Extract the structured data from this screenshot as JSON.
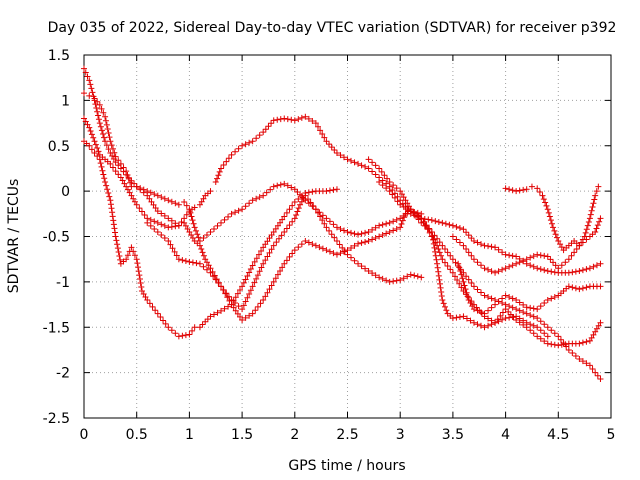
{
  "chart_data": {
    "type": "scatter",
    "title": "Day 035 of 2022, Sidereal Day-to-day VTEC variation (SDTVAR) for receiver p392",
    "xlabel": "GPS time / hours",
    "ylabel": "SDTVAR / TECUs",
    "xlim": [
      0,
      5
    ],
    "ylim": [
      -2.5,
      1.5
    ],
    "xticks": [
      "0",
      "0.5",
      "1",
      "1.5",
      "2",
      "2.5",
      "3",
      "3.5",
      "4",
      "4.5",
      "5"
    ],
    "yticks": [
      "1.5",
      "1",
      "0.5",
      "0",
      "-0.5",
      "-1",
      "-1.5",
      "-2",
      "-2.5"
    ],
    "grid": true,
    "marker": "+",
    "color": "#e00000",
    "series": [
      {
        "name": "trace-a",
        "points": [
          [
            0.0,
            1.35
          ],
          [
            0.05,
            1.22
          ],
          [
            0.1,
            1.0
          ],
          [
            0.15,
            0.75
          ],
          [
            0.2,
            0.55
          ],
          [
            0.25,
            0.42
          ],
          [
            0.3,
            0.32
          ],
          [
            0.4,
            0.18
          ],
          [
            0.5,
            0.05
          ],
          [
            0.6,
            -0.05
          ],
          [
            0.7,
            -0.22
          ],
          [
            0.8,
            -0.3
          ],
          [
            0.9,
            -0.38
          ],
          [
            1.0,
            -0.22
          ],
          [
            1.05,
            -0.18
          ],
          [
            1.1,
            -0.15
          ],
          [
            1.15,
            -0.05
          ],
          [
            1.2,
            0.0
          ]
        ]
      },
      {
        "name": "trace-b",
        "points": [
          [
            0.0,
            1.08
          ],
          [
            0.05,
            1.05
          ],
          [
            0.1,
            1.02
          ],
          [
            0.15,
            0.95
          ],
          [
            0.2,
            0.82
          ],
          [
            0.25,
            0.55
          ],
          [
            0.3,
            0.38
          ],
          [
            0.4,
            0.22
          ],
          [
            0.45,
            0.05
          ],
          [
            0.5,
            0.05
          ],
          [
            0.6,
            0.0
          ],
          [
            0.7,
            -0.05
          ],
          [
            0.8,
            -0.1
          ],
          [
            0.9,
            -0.15
          ],
          [
            0.95,
            -0.12
          ],
          [
            1.0,
            -0.2
          ],
          [
            1.05,
            -0.4
          ],
          [
            1.1,
            -0.55
          ],
          [
            1.2,
            -0.45
          ],
          [
            1.3,
            -0.35
          ],
          [
            1.4,
            -0.25
          ],
          [
            1.5,
            -0.2
          ],
          [
            1.6,
            -0.1
          ],
          [
            1.7,
            -0.05
          ],
          [
            1.8,
            0.05
          ],
          [
            1.9,
            0.08
          ],
          [
            2.0,
            0.02
          ],
          [
            2.1,
            -0.1
          ],
          [
            2.2,
            -0.2
          ],
          [
            2.3,
            -0.3
          ],
          [
            2.4,
            -0.4
          ],
          [
            2.5,
            -0.45
          ],
          [
            2.6,
            -0.48
          ],
          [
            2.7,
            -0.45
          ],
          [
            2.8,
            -0.38
          ],
          [
            2.9,
            -0.35
          ],
          [
            3.0,
            -0.3
          ],
          [
            3.1,
            -0.22
          ],
          [
            3.2,
            -0.25
          ]
        ]
      },
      {
        "name": "trace-c",
        "points": [
          [
            0.0,
            0.8
          ],
          [
            0.05,
            0.7
          ],
          [
            0.1,
            0.55
          ],
          [
            0.15,
            0.4
          ],
          [
            0.2,
            0.35
          ],
          [
            0.25,
            0.3
          ],
          [
            0.3,
            0.22
          ],
          [
            0.35,
            0.15
          ],
          [
            0.4,
            0.05
          ],
          [
            0.45,
            -0.05
          ],
          [
            0.5,
            -0.15
          ],
          [
            0.6,
            -0.3
          ],
          [
            0.7,
            -0.35
          ],
          [
            0.8,
            -0.4
          ],
          [
            0.9,
            -0.38
          ],
          [
            0.95,
            -0.35
          ],
          [
            1.0,
            -0.45
          ],
          [
            1.05,
            -0.55
          ],
          [
            1.1,
            -0.6
          ],
          [
            1.15,
            -0.75
          ],
          [
            1.2,
            -0.85
          ],
          [
            1.3,
            -1.05
          ],
          [
            1.4,
            -1.25
          ],
          [
            1.5,
            -1.42
          ],
          [
            1.6,
            -1.35
          ],
          [
            1.7,
            -1.2
          ],
          [
            1.8,
            -1.0
          ],
          [
            1.9,
            -0.8
          ],
          [
            2.0,
            -0.65
          ],
          [
            2.1,
            -0.55
          ],
          [
            2.2,
            -0.6
          ],
          [
            2.3,
            -0.65
          ],
          [
            2.4,
            -0.7
          ],
          [
            2.5,
            -0.65
          ],
          [
            2.6,
            -0.58
          ],
          [
            2.7,
            -0.55
          ],
          [
            2.8,
            -0.5
          ],
          [
            2.9,
            -0.45
          ],
          [
            3.0,
            -0.4
          ],
          [
            3.05,
            -0.25
          ],
          [
            3.1,
            -0.2
          ],
          [
            3.2,
            -0.3
          ],
          [
            3.3,
            -0.45
          ],
          [
            3.4,
            -0.6
          ],
          [
            3.5,
            -0.75
          ],
          [
            3.6,
            -0.9
          ],
          [
            3.7,
            -1.05
          ],
          [
            3.8,
            -1.15
          ],
          [
            3.9,
            -1.2
          ],
          [
            4.0,
            -1.25
          ],
          [
            4.1,
            -1.3
          ],
          [
            4.2,
            -1.35
          ],
          [
            4.3,
            -1.4
          ],
          [
            4.4,
            -1.5
          ],
          [
            4.5,
            -1.6
          ],
          [
            4.6,
            -1.75
          ],
          [
            4.7,
            -1.85
          ],
          [
            4.8,
            -1.92
          ],
          [
            4.85,
            -2.0
          ],
          [
            4.9,
            -2.07
          ]
        ]
      },
      {
        "name": "trace-d",
        "points": [
          [
            0.0,
            0.55
          ],
          [
            0.05,
            0.5
          ],
          [
            0.1,
            0.42
          ],
          [
            0.15,
            0.35
          ],
          [
            0.2,
            0.1
          ],
          [
            0.25,
            -0.1
          ],
          [
            0.3,
            -0.5
          ],
          [
            0.35,
            -0.8
          ],
          [
            0.4,
            -0.75
          ],
          [
            0.45,
            -0.62
          ],
          [
            0.5,
            -0.75
          ],
          [
            0.55,
            -1.1
          ],
          [
            0.6,
            -1.2
          ],
          [
            0.7,
            -1.35
          ],
          [
            0.8,
            -1.5
          ],
          [
            0.9,
            -1.6
          ],
          [
            1.0,
            -1.58
          ],
          [
            1.05,
            -1.5
          ],
          [
            1.1,
            -1.5
          ],
          [
            1.2,
            -1.38
          ],
          [
            1.3,
            -1.32
          ],
          [
            1.4,
            -1.25
          ],
          [
            1.5,
            -1.05
          ],
          [
            1.6,
            -0.82
          ],
          [
            1.7,
            -0.62
          ],
          [
            1.8,
            -0.45
          ],
          [
            1.9,
            -0.28
          ],
          [
            2.0,
            -0.12
          ],
          [
            2.1,
            -0.02
          ],
          [
            2.2,
            0.0
          ],
          [
            2.3,
            0.0
          ],
          [
            2.4,
            0.02
          ]
        ]
      },
      {
        "name": "trace-e",
        "points": [
          [
            1.25,
            0.1
          ],
          [
            1.3,
            0.25
          ],
          [
            1.4,
            0.4
          ],
          [
            1.5,
            0.5
          ],
          [
            1.6,
            0.55
          ],
          [
            1.7,
            0.65
          ],
          [
            1.8,
            0.78
          ],
          [
            1.9,
            0.8
          ],
          [
            2.0,
            0.78
          ],
          [
            2.1,
            0.82
          ],
          [
            2.2,
            0.75
          ],
          [
            2.3,
            0.55
          ],
          [
            2.4,
            0.42
          ],
          [
            2.5,
            0.35
          ],
          [
            2.6,
            0.3
          ],
          [
            2.7,
            0.25
          ],
          [
            2.8,
            0.15
          ],
          [
            2.9,
            0.05
          ],
          [
            3.0,
            -0.1
          ],
          [
            3.1,
            -0.25
          ],
          [
            3.2,
            -0.3
          ],
          [
            3.3,
            -0.32
          ],
          [
            3.4,
            -0.35
          ],
          [
            3.5,
            -0.38
          ],
          [
            3.6,
            -0.42
          ],
          [
            3.7,
            -0.55
          ],
          [
            3.8,
            -0.6
          ],
          [
            3.9,
            -0.62
          ],
          [
            4.0,
            -0.7
          ],
          [
            4.1,
            -0.72
          ],
          [
            4.2,
            -0.8
          ],
          [
            4.3,
            -0.85
          ],
          [
            4.4,
            -0.88
          ],
          [
            4.5,
            -0.9
          ],
          [
            4.6,
            -0.9
          ],
          [
            4.7,
            -0.88
          ],
          [
            4.8,
            -0.85
          ],
          [
            4.9,
            -0.8
          ]
        ]
      },
      {
        "name": "trace-f",
        "points": [
          [
            0.6,
            -0.35
          ],
          [
            0.7,
            -0.45
          ],
          [
            0.8,
            -0.55
          ],
          [
            0.9,
            -0.75
          ],
          [
            1.0,
            -0.78
          ],
          [
            1.1,
            -0.8
          ],
          [
            1.2,
            -0.9
          ],
          [
            1.3,
            -1.05
          ],
          [
            1.4,
            -1.2
          ],
          [
            1.5,
            -1.3
          ],
          [
            1.6,
            -1.05
          ],
          [
            1.7,
            -0.8
          ],
          [
            1.8,
            -0.6
          ],
          [
            1.9,
            -0.45
          ],
          [
            2.0,
            -0.3
          ],
          [
            2.05,
            -0.15
          ],
          [
            2.1,
            -0.05
          ],
          [
            2.2,
            -0.2
          ],
          [
            2.3,
            -0.4
          ],
          [
            2.4,
            -0.55
          ],
          [
            2.5,
            -0.7
          ],
          [
            2.6,
            -0.8
          ],
          [
            2.7,
            -0.88
          ],
          [
            2.8,
            -0.95
          ],
          [
            2.9,
            -1.0
          ],
          [
            3.0,
            -0.98
          ],
          [
            3.1,
            -0.92
          ],
          [
            3.2,
            -0.95
          ]
        ]
      },
      {
        "name": "trace-g",
        "points": [
          [
            2.7,
            0.35
          ],
          [
            2.8,
            0.25
          ],
          [
            2.9,
            0.1
          ],
          [
            3.0,
            0.0
          ],
          [
            3.05,
            -0.1
          ],
          [
            3.1,
            -0.2
          ],
          [
            3.2,
            -0.35
          ],
          [
            3.3,
            -0.45
          ],
          [
            3.35,
            -0.8
          ],
          [
            3.4,
            -1.2
          ],
          [
            3.45,
            -1.35
          ],
          [
            3.5,
            -1.4
          ],
          [
            3.6,
            -1.38
          ],
          [
            3.7,
            -1.45
          ],
          [
            3.8,
            -1.5
          ],
          [
            3.9,
            -1.45
          ],
          [
            4.0,
            -1.3
          ],
          [
            4.1,
            -1.42
          ],
          [
            4.2,
            -1.5
          ],
          [
            4.3,
            -1.6
          ],
          [
            4.4,
            -1.68
          ],
          [
            4.5,
            -1.7
          ],
          [
            4.6,
            -1.68
          ],
          [
            4.7,
            -1.68
          ],
          [
            4.8,
            -1.65
          ],
          [
            4.85,
            -1.55
          ],
          [
            4.9,
            -1.45
          ]
        ]
      },
      {
        "name": "trace-h",
        "points": [
          [
            3.5,
            -0.5
          ],
          [
            3.6,
            -0.6
          ],
          [
            3.7,
            -0.75
          ],
          [
            3.8,
            -0.85
          ],
          [
            3.9,
            -0.9
          ],
          [
            4.0,
            -0.85
          ],
          [
            4.1,
            -0.8
          ],
          [
            4.2,
            -0.75
          ],
          [
            4.3,
            -0.7
          ],
          [
            4.4,
            -0.72
          ],
          [
            4.5,
            -0.85
          ],
          [
            4.6,
            -0.75
          ],
          [
            4.7,
            -0.6
          ],
          [
            4.8,
            -0.5
          ],
          [
            4.85,
            -0.45
          ],
          [
            4.9,
            -0.3
          ]
        ]
      },
      {
        "name": "trace-i",
        "points": [
          [
            3.55,
            -0.8
          ],
          [
            3.6,
            -1.0
          ],
          [
            3.65,
            -1.2
          ],
          [
            3.7,
            -1.3
          ],
          [
            3.8,
            -1.35
          ],
          [
            3.9,
            -1.25
          ],
          [
            4.0,
            -1.15
          ],
          [
            4.1,
            -1.2
          ],
          [
            4.2,
            -1.28
          ],
          [
            4.3,
            -1.3
          ],
          [
            4.4,
            -1.2
          ],
          [
            4.5,
            -1.15
          ],
          [
            4.55,
            -1.1
          ],
          [
            4.6,
            -1.05
          ],
          [
            4.7,
            -1.08
          ],
          [
            4.8,
            -1.05
          ],
          [
            4.9,
            -1.05
          ]
        ]
      },
      {
        "name": "trace-j",
        "points": [
          [
            4.0,
            0.03
          ],
          [
            4.1,
            0.0
          ],
          [
            4.2,
            0.02
          ],
          [
            4.25,
            0.05
          ],
          [
            4.3,
            0.03
          ],
          [
            4.35,
            -0.05
          ],
          [
            4.4,
            -0.2
          ],
          [
            4.45,
            -0.4
          ],
          [
            4.5,
            -0.55
          ],
          [
            4.55,
            -0.65
          ],
          [
            4.6,
            -0.6
          ],
          [
            4.65,
            -0.55
          ],
          [
            4.7,
            -0.6
          ],
          [
            4.75,
            -0.5
          ],
          [
            4.8,
            -0.3
          ],
          [
            4.85,
            -0.05
          ],
          [
            4.88,
            0.05
          ]
        ]
      },
      {
        "name": "trace-k",
        "points": [
          [
            2.8,
            0.1
          ],
          [
            2.9,
            0.0
          ],
          [
            3.0,
            -0.15
          ],
          [
            3.1,
            -0.22
          ],
          [
            3.15,
            -0.25
          ],
          [
            3.2,
            -0.3
          ],
          [
            3.3,
            -0.5
          ],
          [
            3.35,
            -0.6
          ],
          [
            3.4,
            -0.75
          ],
          [
            3.5,
            -0.9
          ],
          [
            3.6,
            -1.1
          ],
          [
            3.7,
            -1.25
          ],
          [
            3.8,
            -1.38
          ],
          [
            3.9,
            -1.45
          ],
          [
            4.0,
            -1.4
          ],
          [
            4.1,
            -1.38
          ],
          [
            4.2,
            -1.45
          ],
          [
            4.3,
            -1.5
          ],
          [
            4.4,
            -1.6
          ]
        ]
      }
    ]
  }
}
